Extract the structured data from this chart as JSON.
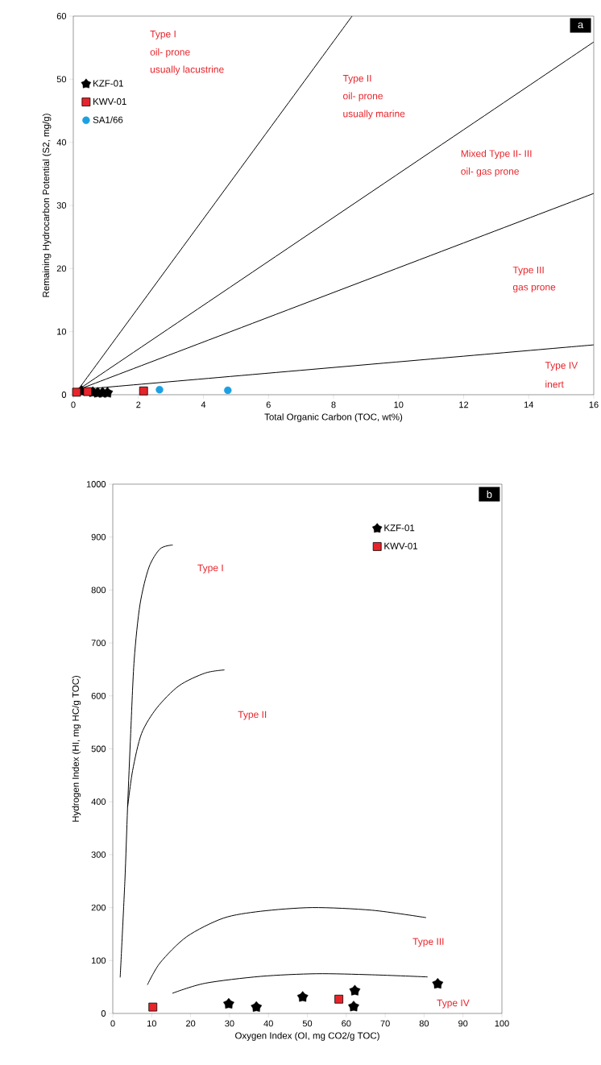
{
  "chart_data": [
    {
      "type": "scatter",
      "xlabel": "Total Organic Carbon (TOC, wt%)",
      "ylabel": "Remaining Hydrocarbon Potential (S2, mg/g)",
      "xlim": [
        0,
        16
      ],
      "ylim": [
        0,
        60
      ],
      "xticks": [
        0,
        2,
        4,
        6,
        8,
        10,
        12,
        14,
        16
      ],
      "yticks": [
        0,
        10,
        20,
        30,
        40,
        50,
        60
      ],
      "legend": "top left",
      "series": [
        {
          "type": "line",
          "color": "#000000",
          "marker": "none",
          "x": [
            0.15,
            8.57
          ],
          "values": [
            0.8,
            60
          ]
        },
        {
          "type": "line",
          "color": "#000000",
          "marker": "none",
          "x": [
            0.15,
            16
          ],
          "values": [
            0.8,
            55.9
          ]
        },
        {
          "type": "line",
          "color": "#000000",
          "marker": "none",
          "x": [
            0.15,
            16
          ],
          "values": [
            0.8,
            31.9
          ]
        },
        {
          "type": "line",
          "color": "#000000",
          "marker": "none",
          "x": [
            0.15,
            16
          ],
          "values": [
            0.8,
            7.9
          ]
        },
        {
          "name": "KZF-01",
          "color": "#000000",
          "marker": "star",
          "x": [
            0.25,
            0.6,
            0.75,
            0.9,
            1.05
          ],
          "values": [
            0.6,
            0.4,
            0.3,
            0.3,
            0.3
          ]
        },
        {
          "name": "KWV-01",
          "color": "#e8242b",
          "marker": "square",
          "x": [
            0.1,
            0.44,
            2.16
          ],
          "values": [
            0.4,
            0.5,
            0.6
          ]
        },
        {
          "name": "SA1/66",
          "color": "#1ba1e2",
          "marker": "circle",
          "x": [
            2.65,
            4.75
          ],
          "values": [
            0.8,
            0.7
          ]
        }
      ],
      "annotations": [
        "a",
        "Type I",
        "oil- prone",
        "usually lacustrine",
        "Type II",
        "oil- prone",
        "usually marine",
        "Mixed Type II- III",
        "oil- gas prone",
        "Type III",
        "gas prone",
        "Type IV",
        "inert"
      ]
    },
    {
      "type": "scatter",
      "xlabel": "Oxygen Index (OI, mg CO2/g TOC)",
      "ylabel": "Hydrogen Index (HI, mg HC/g TOC)",
      "xlim": [
        0,
        100
      ],
      "ylim": [
        0,
        1000
      ],
      "xticks": [
        0,
        10,
        20,
        30,
        40,
        50,
        60,
        70,
        80,
        90,
        100
      ],
      "yticks": [
        0,
        100,
        200,
        300,
        400,
        500,
        600,
        700,
        800,
        900,
        1000
      ],
      "legend": "top right",
      "series": [
        {
          "type": "line",
          "color": "#000000",
          "marker": "none",
          "x": [
            1.9,
            3.1,
            3.8,
            4.6,
            5.5,
            7.0,
            9.3,
            12.2,
            15.4
          ],
          "values": [
            68,
            249,
            389,
            529,
            668,
            773,
            843,
            878,
            885
          ]
        },
        {
          "type": "line",
          "color": "#000000",
          "marker": "none",
          "x": [
            3.8,
            5.1,
            7.4,
            11.3,
            17,
            23.7,
            28.7
          ],
          "values": [
            389,
            459,
            529,
            577,
            619,
            643,
            649
          ]
        },
        {
          "type": "line",
          "color": "#000000",
          "marker": "none",
          "x": [
            8.9,
            12.2,
            19,
            28.4,
            38,
            51.3,
            66.6,
            80.5
          ],
          "values": [
            54,
            96,
            145,
            180,
            193,
            200,
            195,
            181
          ]
        },
        {
          "type": "line",
          "color": "#000000",
          "marker": "none",
          "x": [
            15.3,
            23.7,
            38,
            52.3,
            66.6,
            80.9
          ],
          "values": [
            38,
            57,
            70,
            75,
            73,
            69
          ]
        },
        {
          "name": "KZF-01",
          "color": "#000000",
          "marker": "star",
          "x": [
            29.8,
            36.9,
            48.8,
            62.2,
            61.9,
            83.5
          ],
          "values": [
            18,
            12,
            31,
            43,
            13,
            56
          ]
        },
        {
          "name": "KWV-01",
          "color": "#e8242b",
          "marker": "square",
          "x": [
            10.3,
            58.1
          ],
          "values": [
            12,
            27
          ]
        }
      ],
      "annotations": [
        "b",
        "Type I",
        "Type II",
        "Type III",
        "Type IV"
      ]
    }
  ]
}
